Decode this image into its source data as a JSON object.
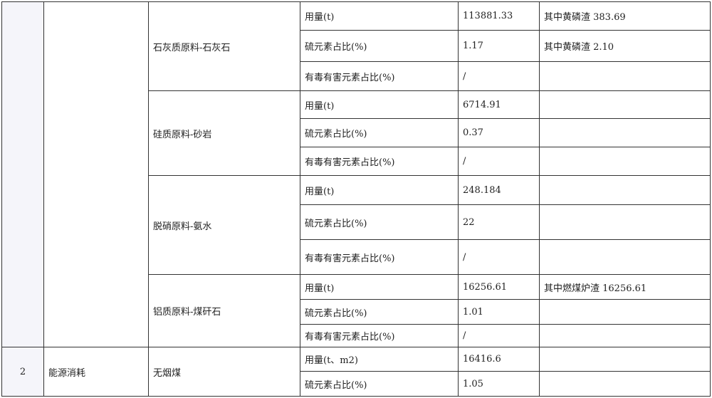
{
  "rows": [
    {
      "no": "",
      "category": "",
      "material": "石灰质原料-石灰石",
      "items": [
        {
          "label": "用量(t)",
          "value": "113881.33",
          "note": "其中黄磷渣 383.69"
        },
        {
          "label": "硫元素占比(%)",
          "value": "1.17",
          "note": "其中黄磷渣 2.10"
        },
        {
          "label": "有毒有害元素占比(%)",
          "value": "/",
          "note": ""
        }
      ]
    },
    {
      "material": "硅质原料-砂岩",
      "items": [
        {
          "label": "用量(t)",
          "value": "6714.91",
          "note": ""
        },
        {
          "label": "硫元素占比(%)",
          "value": "0.37",
          "note": ""
        },
        {
          "label": "有毒有害元素占比(%)",
          "value": "/",
          "note": ""
        }
      ]
    },
    {
      "material": "脱硝原料-氨水",
      "items": [
        {
          "label": "用量(t)",
          "value": "248.184",
          "note": ""
        },
        {
          "label": "硫元素占比(%)",
          "value": "22",
          "note": ""
        },
        {
          "label": "有毒有害元素占比(%)",
          "value": "/",
          "note": ""
        }
      ]
    },
    {
      "material": "铝质原料-煤矸石",
      "items": [
        {
          "label": "用量(t)",
          "value": "16256.61",
          "note": "其中燃煤炉渣 16256.61"
        },
        {
          "label": "硫元素占比(%)",
          "value": "1.01",
          "note": ""
        },
        {
          "label": "有毒有害元素占比(%)",
          "value": "/",
          "note": ""
        }
      ]
    },
    {
      "no": "2",
      "category": "能源消耗",
      "material": "无烟煤",
      "items": [
        {
          "label": "用量(t、m2)",
          "value": "16416.6",
          "note": ""
        },
        {
          "label": "硫元素占比(%)",
          "value": "1.05",
          "note": ""
        }
      ]
    }
  ]
}
